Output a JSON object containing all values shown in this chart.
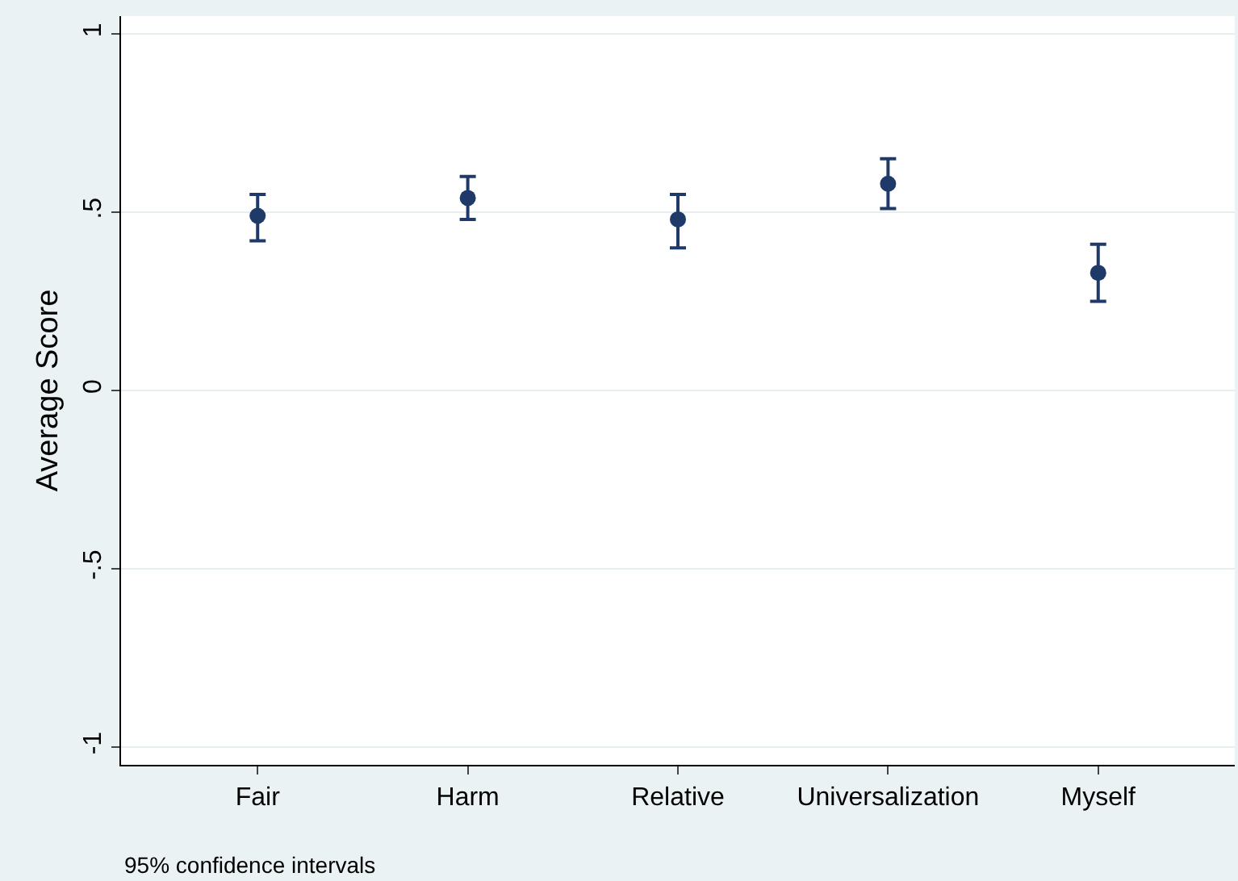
{
  "chart_data": {
    "type": "scatter",
    "ylabel": "Average Score",
    "categories": [
      "Fair",
      "Harm",
      "Relative",
      "Universalization",
      "Myself"
    ],
    "values": [
      0.49,
      0.54,
      0.48,
      0.58,
      0.33
    ],
    "errors": [
      [
        0.42,
        0.55
      ],
      [
        0.48,
        0.6
      ],
      [
        0.4,
        0.55
      ],
      [
        0.51,
        0.65
      ],
      [
        0.25,
        0.41
      ]
    ],
    "color": "#1f3a68",
    "marker": "circle",
    "ylim": [
      -1.05,
      1.05
    ],
    "yticks": [
      {
        "value": -1,
        "label": "-1"
      },
      {
        "value": -0.5,
        "label": "-.5"
      },
      {
        "value": 0,
        "label": "0"
      },
      {
        "value": 0.5,
        "label": ".5"
      },
      {
        "value": 1,
        "label": "1"
      }
    ],
    "grid": "y",
    "annotations": [
      "95% confidence intervals"
    ]
  }
}
